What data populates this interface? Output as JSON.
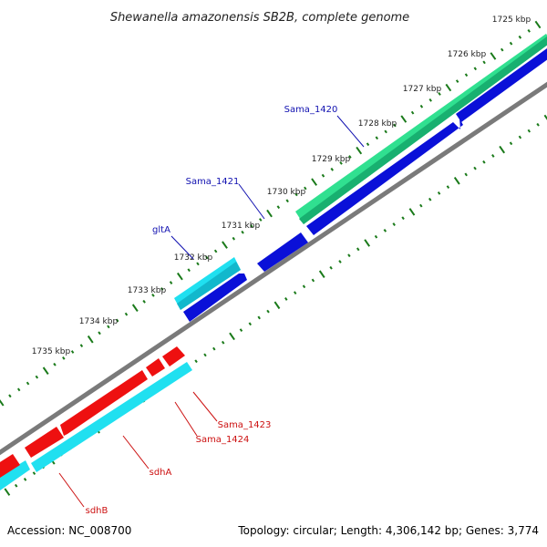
{
  "title": "Shewanella amazonensis SB2B, complete genome",
  "footer": {
    "accession": "Accession: NC_008700",
    "stats": "Topology: circular; Length: 4,306,142 bp; Genes: 3,774"
  },
  "colors": {
    "backbone": "#7a7a7a",
    "tick": "#1a7a1a",
    "forward_label": "#1010b0",
    "reverse_label": "#cc1010",
    "blue": "#0a10d8",
    "cyan": "#20e0f0",
    "green": "#30e090",
    "red": "#ee1010"
  },
  "scale_labels": [
    {
      "text": "1725 kbp",
      "pos": 1725
    },
    {
      "text": "1726 kbp",
      "pos": 1726
    },
    {
      "text": "1727 kbp",
      "pos": 1727
    },
    {
      "text": "1728 kbp",
      "pos": 1728
    },
    {
      "text": "1729 kbp",
      "pos": 1729
    },
    {
      "text": "1730 kbp",
      "pos": 1730
    },
    {
      "text": "1731 kbp",
      "pos": 1731
    },
    {
      "text": "1732 kbp",
      "pos": 1732
    },
    {
      "text": "1733 kbp",
      "pos": 1733
    },
    {
      "text": "1734 kbp",
      "pos": 1734
    },
    {
      "text": "1735 kbp",
      "pos": 1735
    }
  ],
  "gene_labels": [
    {
      "text": "Sama_1420",
      "strand": "forward"
    },
    {
      "text": "Sama_1421",
      "strand": "forward"
    },
    {
      "text": "gltA",
      "strand": "forward"
    },
    {
      "text": "Sama_1423",
      "strand": "reverse"
    },
    {
      "text": "Sama_1424",
      "strand": "reverse"
    },
    {
      "text": "sdhA",
      "strand": "reverse"
    },
    {
      "text": "sdhB",
      "strand": "reverse"
    }
  ]
}
